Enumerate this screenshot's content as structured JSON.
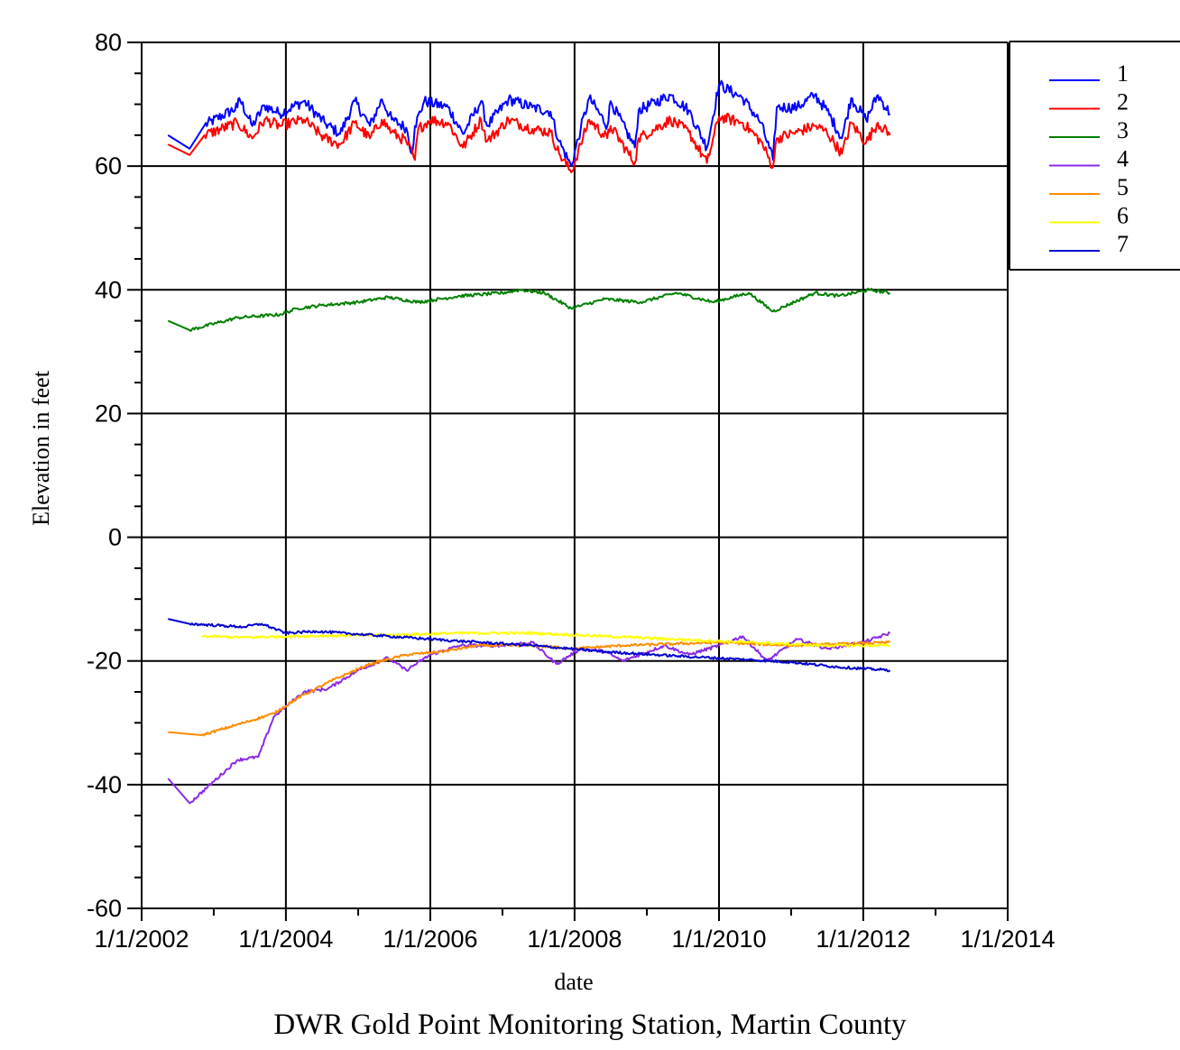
{
  "chart_data": {
    "type": "line",
    "title": "DWR Gold Point Monitoring Station, Martin County",
    "xlabel": "date",
    "ylabel": "Elevation in feet",
    "x_ticks": [
      "1/1/2002",
      "1/1/2004",
      "1/1/2006",
      "1/1/2008",
      "1/1/2010",
      "1/1/2012",
      "1/1/2014"
    ],
    "y_ticks": [
      "80",
      "60",
      "40",
      "20",
      "0",
      "-20",
      "-40",
      "-60"
    ],
    "xlim": [
      "2002-01-01",
      "2014-01-01"
    ],
    "ylim": [
      -60,
      80
    ],
    "grid": true,
    "legend_position": "top-right",
    "series": [
      {
        "name": "1",
        "color": "#0000ff",
        "points": [
          [
            "2002-05-15",
            65.0
          ],
          [
            "2002-09-01",
            62.8
          ],
          [
            "2002-11-15",
            66.6
          ],
          [
            "2003-05-01",
            69.5
          ],
          [
            "2003-05-10",
            71.0
          ],
          [
            "2003-07-15",
            66.5
          ],
          [
            "2003-09-15",
            69.8
          ],
          [
            "2003-12-01",
            68.5
          ],
          [
            "2004-04-01",
            70.5
          ],
          [
            "2004-07-15",
            67.0
          ],
          [
            "2004-10-01",
            65.2
          ],
          [
            "2004-12-15",
            70.5
          ],
          [
            "2005-03-01",
            66.5
          ],
          [
            "2005-05-01",
            70.8
          ],
          [
            "2005-06-20",
            67.5
          ],
          [
            "2005-09-01",
            66.2
          ],
          [
            "2005-10-01",
            62.0
          ],
          [
            "2005-10-15",
            66.5
          ],
          [
            "2005-12-01",
            70.5
          ],
          [
            "2006-04-01",
            69.5
          ],
          [
            "2006-06-15",
            65.2
          ],
          [
            "2006-09-15",
            70.5
          ],
          [
            "2006-10-15",
            66.5
          ],
          [
            "2007-02-01",
            70.8
          ],
          [
            "2007-06-01",
            69.5
          ],
          [
            "2007-09-01",
            68.8
          ],
          [
            "2007-10-15",
            64.0
          ],
          [
            "2007-12-15",
            60.0
          ],
          [
            "2008-02-01",
            66.0
          ],
          [
            "2008-03-15",
            71.0
          ],
          [
            "2008-06-15",
            66.5
          ],
          [
            "2008-07-01",
            70.5
          ],
          [
            "2008-11-01",
            63.0
          ],
          [
            "2008-11-20",
            69.0
          ],
          [
            "2009-05-01",
            71.5
          ],
          [
            "2009-08-01",
            69.0
          ],
          [
            "2009-11-01",
            63.0
          ],
          [
            "2010-01-01",
            73.2
          ],
          [
            "2010-05-01",
            71.0
          ],
          [
            "2010-08-01",
            67.0
          ],
          [
            "2010-10-01",
            61.0
          ],
          [
            "2010-10-20",
            69.5
          ],
          [
            "2011-02-01",
            69.5
          ],
          [
            "2011-05-01",
            71.5
          ],
          [
            "2011-07-01",
            69.0
          ],
          [
            "2011-09-15",
            64.5
          ],
          [
            "2011-11-01",
            71.0
          ],
          [
            "2012-01-15",
            67.5
          ],
          [
            "2012-03-15",
            71.5
          ],
          [
            "2012-05-15",
            68.5
          ]
        ]
      },
      {
        "name": "2",
        "color": "#ff0000",
        "points": [
          [
            "2002-05-15",
            63.5
          ],
          [
            "2002-09-01",
            61.8
          ],
          [
            "2002-11-15",
            65.0
          ],
          [
            "2003-05-01",
            67.0
          ],
          [
            "2003-07-15",
            64.5
          ],
          [
            "2003-09-15",
            67.5
          ],
          [
            "2003-12-01",
            66.5
          ],
          [
            "2004-04-01",
            67.5
          ],
          [
            "2004-07-15",
            64.5
          ],
          [
            "2004-10-01",
            63.5
          ],
          [
            "2004-12-15",
            67.0
          ],
          [
            "2005-03-01",
            64.5
          ],
          [
            "2005-05-01",
            67.5
          ],
          [
            "2005-06-20",
            65.5
          ],
          [
            "2005-09-01",
            64.0
          ],
          [
            "2005-10-15",
            61.0
          ],
          [
            "2005-11-01",
            66.0
          ],
          [
            "2006-01-01",
            67.5
          ],
          [
            "2006-04-01",
            67.0
          ],
          [
            "2006-06-15",
            63.0
          ],
          [
            "2006-09-15",
            67.5
          ],
          [
            "2006-10-15",
            64.0
          ],
          [
            "2007-02-01",
            67.5
          ],
          [
            "2007-06-01",
            66.0
          ],
          [
            "2007-09-01",
            65.5
          ],
          [
            "2007-10-15",
            62.0
          ],
          [
            "2007-12-15",
            59.0
          ],
          [
            "2008-02-01",
            63.5
          ],
          [
            "2008-03-15",
            67.5
          ],
          [
            "2008-06-15",
            64.5
          ],
          [
            "2008-07-01",
            66.5
          ],
          [
            "2008-11-01",
            60.5
          ],
          [
            "2008-11-20",
            64.5
          ],
          [
            "2009-05-01",
            67.5
          ],
          [
            "2009-08-01",
            65.5
          ],
          [
            "2009-11-01",
            60.5
          ],
          [
            "2010-01-01",
            68.0
          ],
          [
            "2010-05-01",
            67.0
          ],
          [
            "2010-08-01",
            64.0
          ],
          [
            "2010-10-01",
            59.8
          ],
          [
            "2010-10-20",
            64.5
          ],
          [
            "2011-02-01",
            65.5
          ],
          [
            "2011-05-01",
            66.5
          ],
          [
            "2011-07-01",
            65.5
          ],
          [
            "2011-09-15",
            62.0
          ],
          [
            "2011-11-01",
            67.0
          ],
          [
            "2012-01-15",
            63.8
          ],
          [
            "2012-03-15",
            67.0
          ],
          [
            "2012-05-15",
            65.0
          ]
        ]
      },
      {
        "name": "3",
        "color": "#008000",
        "points": [
          [
            "2002-05-15",
            35.0
          ],
          [
            "2002-09-01",
            33.5
          ],
          [
            "2003-05-01",
            35.5
          ],
          [
            "2003-12-01",
            36.0
          ],
          [
            "2004-03-01",
            37.0
          ],
          [
            "2004-07-01",
            37.5
          ],
          [
            "2005-01-01",
            38.0
          ],
          [
            "2005-06-01",
            38.8
          ],
          [
            "2005-11-01",
            38.0
          ],
          [
            "2006-06-01",
            39.0
          ],
          [
            "2007-01-01",
            39.5
          ],
          [
            "2007-04-01",
            40.0
          ],
          [
            "2007-08-01",
            39.5
          ],
          [
            "2007-12-15",
            37.0
          ],
          [
            "2008-06-01",
            38.5
          ],
          [
            "2008-12-01",
            38.0
          ],
          [
            "2009-06-01",
            39.5
          ],
          [
            "2009-12-01",
            38.0
          ],
          [
            "2010-06-01",
            39.5
          ],
          [
            "2010-10-01",
            36.5
          ],
          [
            "2011-05-01",
            39.5
          ],
          [
            "2011-09-01",
            39.0
          ],
          [
            "2012-02-01",
            40.0
          ],
          [
            "2012-05-15",
            39.5
          ]
        ]
      },
      {
        "name": "4",
        "color": "#8a2be2",
        "points": [
          [
            "2002-05-15",
            -39.0
          ],
          [
            "2002-09-01",
            -43.0
          ],
          [
            "2003-05-01",
            -36.0
          ],
          [
            "2003-08-15",
            -35.5
          ],
          [
            "2003-11-01",
            -29.0
          ],
          [
            "2004-04-01",
            -25.0
          ],
          [
            "2004-08-01",
            -24.5
          ],
          [
            "2005-01-01",
            -21.5
          ],
          [
            "2005-06-01",
            -19.5
          ],
          [
            "2005-09-01",
            -21.5
          ],
          [
            "2006-01-01",
            -19.0
          ],
          [
            "2006-06-01",
            -17.5
          ],
          [
            "2007-01-01",
            -17.5
          ],
          [
            "2007-06-01",
            -17.0
          ],
          [
            "2007-10-01",
            -20.5
          ],
          [
            "2008-02-01",
            -18.0
          ],
          [
            "2008-06-01",
            -18.5
          ],
          [
            "2008-09-01",
            -20.0
          ],
          [
            "2009-04-01",
            -17.5
          ],
          [
            "2009-08-01",
            -19.0
          ],
          [
            "2010-01-01",
            -17.5
          ],
          [
            "2010-05-01",
            -16.0
          ],
          [
            "2010-09-01",
            -20.0
          ],
          [
            "2011-02-01",
            -16.5
          ],
          [
            "2011-07-01",
            -18.0
          ],
          [
            "2012-01-01",
            -17.0
          ],
          [
            "2012-05-15",
            -15.5
          ]
        ]
      },
      {
        "name": "5",
        "color": "#ff8c00",
        "points": [
          [
            "2002-05-15",
            -31.5
          ],
          [
            "2002-11-01",
            -32.0
          ],
          [
            "2003-06-01",
            -30.0
          ],
          [
            "2003-11-01",
            -28.5
          ],
          [
            "2004-03-01",
            -26.0
          ],
          [
            "2004-09-01",
            -23.0
          ],
          [
            "2005-03-01",
            -20.5
          ],
          [
            "2005-09-01",
            -19.0
          ],
          [
            "2006-03-01",
            -18.5
          ],
          [
            "2006-09-01",
            -17.5
          ],
          [
            "2007-06-01",
            -17.5
          ],
          [
            "2008-01-01",
            -18.0
          ],
          [
            "2008-09-01",
            -17.5
          ],
          [
            "2010-01-01",
            -17.0
          ],
          [
            "2011-01-01",
            -17.5
          ],
          [
            "2012-05-15",
            -17.0
          ]
        ]
      },
      {
        "name": "6",
        "color": "#ffff00",
        "points": [
          [
            "2002-11-01",
            -16.0
          ],
          [
            "2003-06-01",
            -16.2
          ],
          [
            "2004-03-01",
            -16.0
          ],
          [
            "2005-06-01",
            -15.8
          ],
          [
            "2006-06-01",
            -15.5
          ],
          [
            "2007-06-01",
            -15.5
          ],
          [
            "2008-06-01",
            -16.0
          ],
          [
            "2009-06-01",
            -16.5
          ],
          [
            "2010-06-01",
            -17.0
          ],
          [
            "2011-06-01",
            -17.5
          ],
          [
            "2012-05-15",
            -17.5
          ]
        ]
      },
      {
        "name": "7",
        "color": "#0000cd",
        "points": [
          [
            "2002-05-15",
            -13.2
          ],
          [
            "2002-09-01",
            -14.0
          ],
          [
            "2003-06-01",
            -14.5
          ],
          [
            "2003-09-01",
            -14.0
          ],
          [
            "2004-01-01",
            -15.5
          ],
          [
            "2004-06-01",
            -15.2
          ],
          [
            "2005-06-01",
            -16.0
          ],
          [
            "2006-06-01",
            -16.8
          ],
          [
            "2007-06-01",
            -17.5
          ],
          [
            "2008-06-01",
            -18.5
          ],
          [
            "2009-06-01",
            -19.2
          ],
          [
            "2010-06-01",
            -19.8
          ],
          [
            "2011-01-01",
            -20.2
          ],
          [
            "2011-09-01",
            -21.0
          ],
          [
            "2012-05-15",
            -21.5
          ]
        ]
      }
    ]
  }
}
